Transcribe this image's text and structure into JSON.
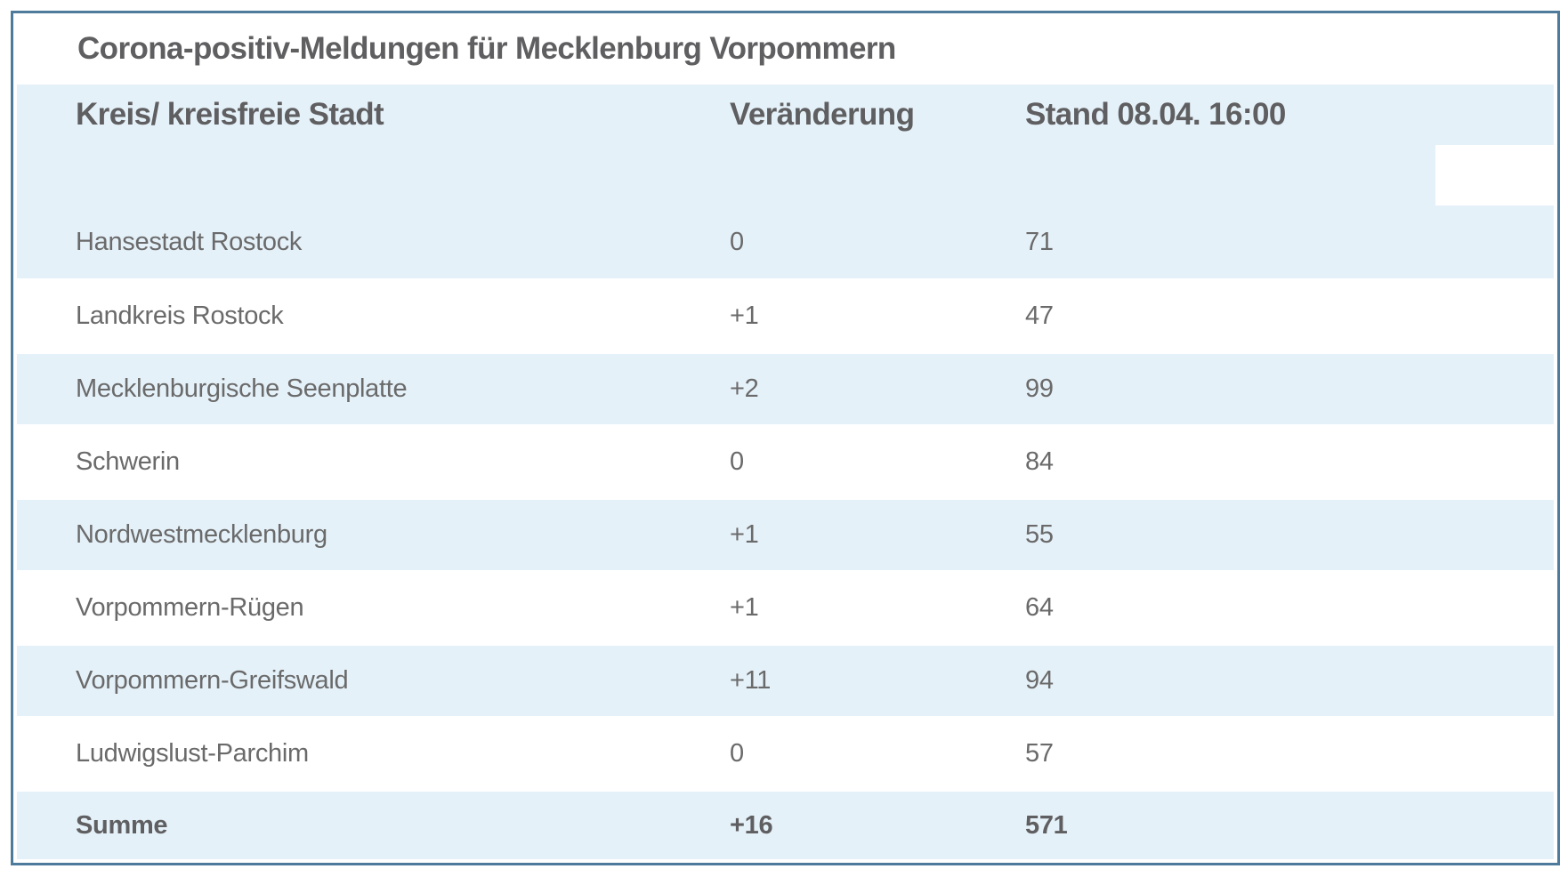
{
  "table": {
    "title": "Corona-positiv-Meldungen für Mecklenburg Vorpommern",
    "columns": [
      "Kreis/ kreisfreie Stadt",
      "Veränderung",
      "Stand 08.04. 16:00"
    ],
    "rows": [
      {
        "name": "Hansestadt Rostock",
        "change": "0",
        "stand": "71"
      },
      {
        "name": "Landkreis Rostock",
        "change": "+1",
        "stand": "47"
      },
      {
        "name": "Mecklenburgische Seenplatte",
        "change": "+2",
        "stand": "99"
      },
      {
        "name": "Schwerin",
        "change": "0",
        "stand": "84"
      },
      {
        "name": "Nordwestmecklenburg",
        "change": "+1",
        "stand": "55"
      },
      {
        "name": "Vorpommern-Rügen",
        "change": "+1",
        "stand": "64"
      },
      {
        "name": "Vorpommern-Greifswald",
        "change": "+11",
        "stand": "94"
      },
      {
        "name": "Ludwigslust-Parchim",
        "change": "0",
        "stand": "57"
      }
    ],
    "total": {
      "name": "Summe",
      "change": "+16",
      "stand": "571"
    }
  },
  "chart_data": {
    "type": "table",
    "title": "Corona-positiv-Meldungen für Mecklenburg Vorpommern",
    "columns": [
      "Kreis/ kreisfreie Stadt",
      "Veränderung",
      "Stand 08.04. 16:00"
    ],
    "rows": [
      [
        "Hansestadt Rostock",
        "0",
        71
      ],
      [
        "Landkreis Rostock",
        "+1",
        47
      ],
      [
        "Mecklenburgische Seenplatte",
        "+2",
        99
      ],
      [
        "Schwerin",
        "0",
        84
      ],
      [
        "Nordwestmecklenburg",
        "+1",
        55
      ],
      [
        "Vorpommern-Rügen",
        "+1",
        64
      ],
      [
        "Vorpommern-Greifswald",
        "+11",
        94
      ],
      [
        "Ludwigslust-Parchim",
        "0",
        57
      ]
    ],
    "total_row": [
      "Summe",
      "+16",
      571
    ],
    "layout": "alternating light-blue and white rows; header and total rows highlighted light blue"
  },
  "colors": {
    "row_highlight_blue": "#e5f1f9",
    "table_border_blue": "#4e7b9c",
    "text_regular": "#6a6a6a",
    "text_bold": "#5f5f61",
    "background": "#ffffff"
  }
}
